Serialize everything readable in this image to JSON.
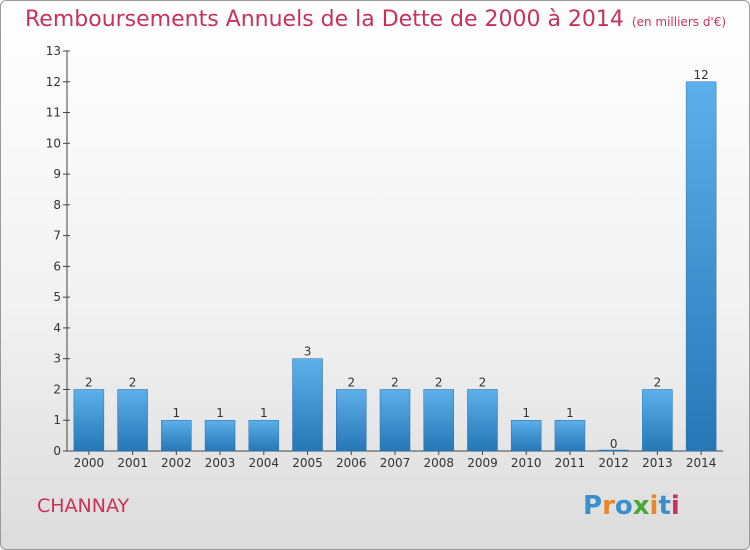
{
  "title": "Remboursements Annuels de la Dette de 2000 à 2014",
  "subtitle": "(en milliers d'€)",
  "town": "CHANNAY",
  "brand": {
    "text": "Proxiti",
    "letter_colors": [
      "#3a8fd0",
      "#e8862a",
      "#3a8fd0",
      "#4aa83a",
      "#e8862a",
      "#3a8fd0",
      "#c8325a"
    ]
  },
  "colors": {
    "accent": "#c8325a",
    "bar_top": "#5db0ea",
    "bar_bottom": "#2577b6"
  },
  "chart_data": {
    "type": "bar",
    "categories": [
      "2000",
      "2001",
      "2002",
      "2003",
      "2004",
      "2005",
      "2006",
      "2007",
      "2008",
      "2009",
      "2010",
      "2011",
      "2012",
      "2013",
      "2014"
    ],
    "values": [
      2,
      2,
      1,
      1,
      1,
      3,
      2,
      2,
      2,
      2,
      1,
      1,
      0,
      2,
      12
    ],
    "data_labels": [
      "2",
      "2",
      "1",
      "1",
      "1",
      "3",
      "2",
      "2",
      "2",
      "2",
      "1",
      "1",
      "0",
      "2",
      "12"
    ],
    "y_ticks": [
      "0",
      "1",
      "2",
      "3",
      "4",
      "5",
      "6",
      "7",
      "8",
      "9",
      "10",
      "11",
      "12",
      "13"
    ],
    "ylim": [
      0,
      13
    ],
    "grid": false,
    "legend": "none"
  }
}
